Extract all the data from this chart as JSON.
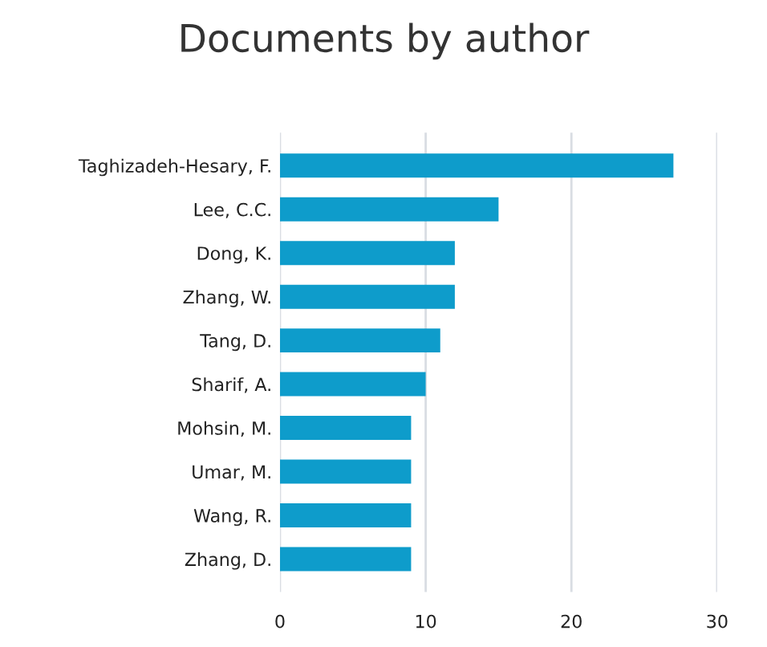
{
  "chart_data": {
    "type": "bar",
    "orientation": "horizontal",
    "title": "Documents by author",
    "categories": [
      "Taghizadeh-Hesary, F.",
      "Lee, C.C.",
      "Dong, K.",
      "Zhang, W.",
      "Tang, D.",
      "Sharif, A.",
      "Mohsin, M.",
      "Umar, M.",
      "Wang, R.",
      "Zhang, D."
    ],
    "values": [
      27,
      15,
      12,
      12,
      11,
      10,
      9,
      9,
      9,
      9
    ],
    "color": "#0e9ccb",
    "xlim": [
      0,
      30
    ],
    "xticks": [
      0,
      10,
      20,
      30
    ],
    "grid": "x"
  }
}
